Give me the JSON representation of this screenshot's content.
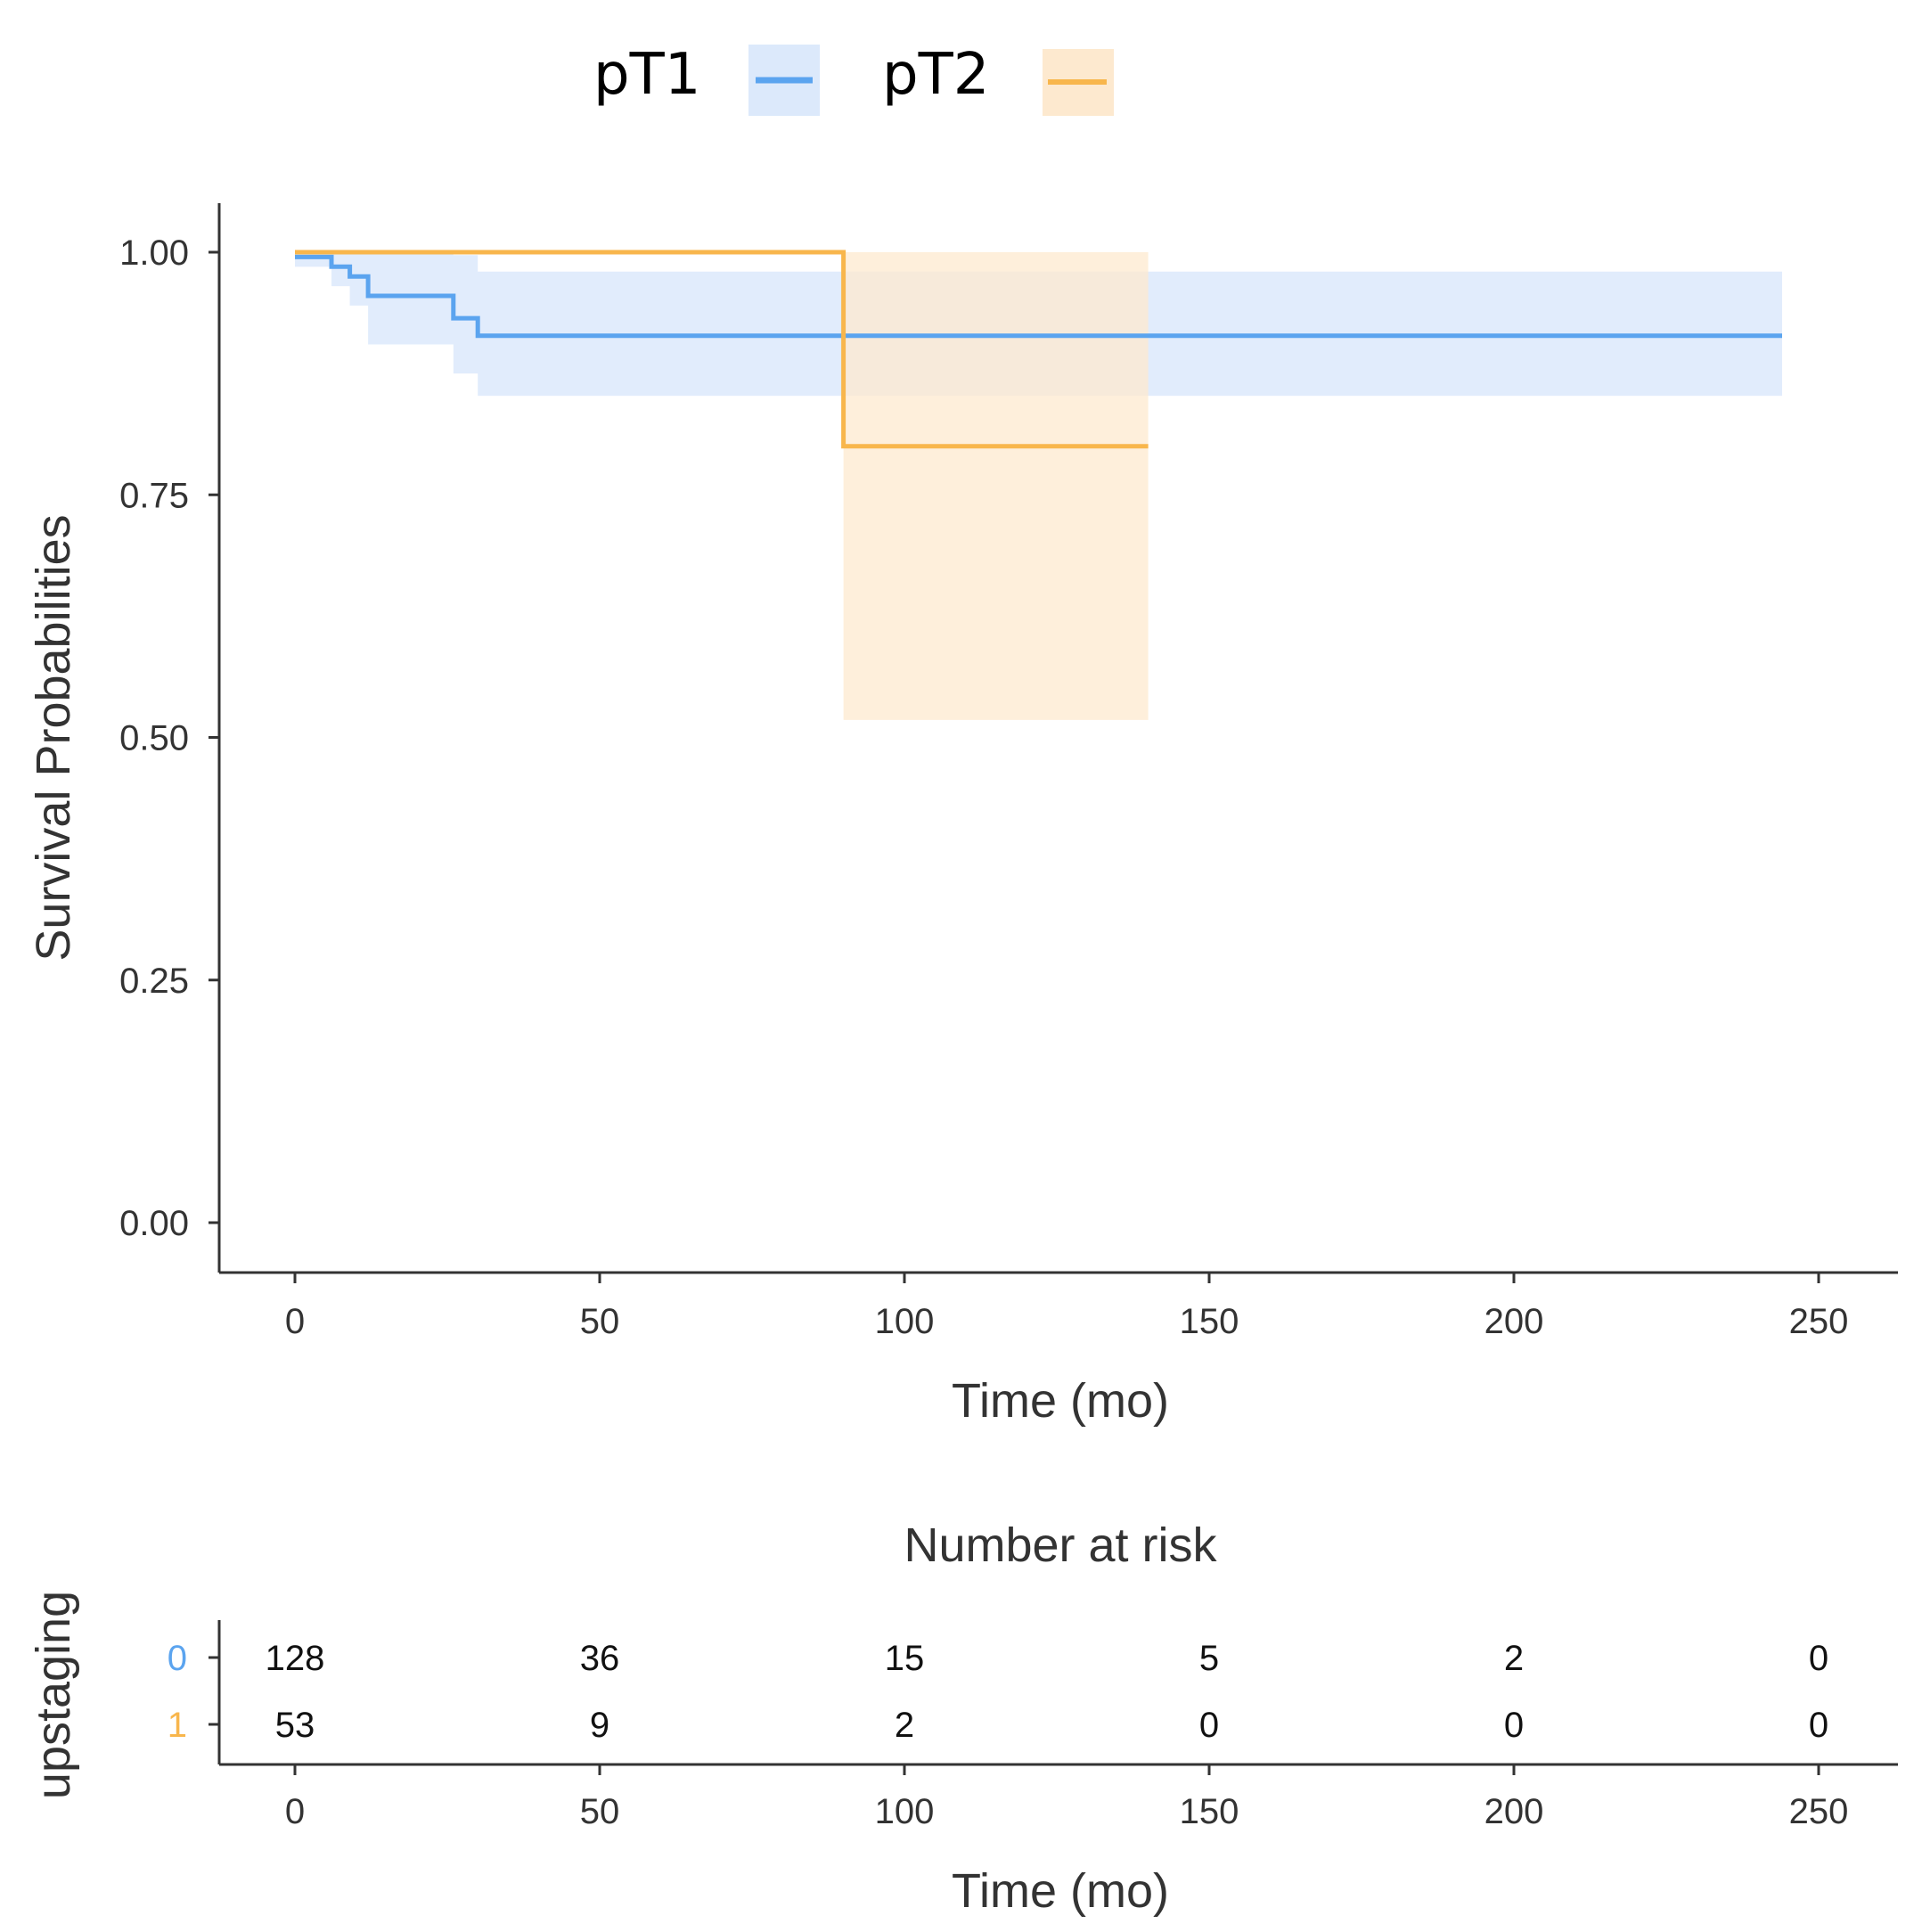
{
  "chart_data": {
    "type": "line",
    "subtype": "kaplan-meier",
    "title": "",
    "xlabel": "Time (mo)",
    "ylabel": "Survival Probabilities",
    "xlim": [
      0,
      250
    ],
    "ylim": [
      0,
      1
    ],
    "x_ticks": [
      "0",
      "50",
      "100",
      "150",
      "200",
      "250"
    ],
    "y_ticks": [
      "0.00",
      "0.25",
      "0.50",
      "0.75",
      "1.00"
    ],
    "legend": [
      {
        "label": "pT1",
        "color": "#5ba4ef"
      },
      {
        "label": "pT2",
        "color": "#f8b64c"
      }
    ],
    "series": [
      {
        "name": "pT1",
        "color": "#5ba4ef",
        "band_color": "#dce9fb",
        "steps": [
          [
            0,
            0.995
          ],
          [
            6,
            0.985
          ],
          [
            9,
            0.975
          ],
          [
            12,
            0.955
          ],
          [
            26,
            0.932
          ],
          [
            30,
            0.914
          ],
          [
            244,
            0.914
          ]
        ],
        "ci_lower": [
          [
            0,
            0.985
          ],
          [
            6,
            0.965
          ],
          [
            9,
            0.945
          ],
          [
            12,
            0.905
          ],
          [
            26,
            0.875
          ],
          [
            30,
            0.852
          ],
          [
            244,
            0.852
          ]
        ],
        "ci_upper": [
          [
            0,
            1.0
          ],
          [
            26,
            0.997
          ],
          [
            30,
            0.98
          ],
          [
            244,
            0.98
          ]
        ]
      },
      {
        "name": "pT2",
        "color": "#f8b64c",
        "band_color": "#fde9cf",
        "steps": [
          [
            0,
            1.0
          ],
          [
            90,
            0.8
          ],
          [
            140,
            0.8
          ]
        ],
        "ci_lower": [
          [
            90,
            0.518
          ],
          [
            140,
            0.518
          ]
        ],
        "ci_upper": [
          [
            90,
            1.0
          ],
          [
            140,
            1.0
          ]
        ]
      }
    ],
    "risk_table": {
      "title": "Number at risk",
      "ylabel": "upstaging",
      "xlabel": "Time (mo)",
      "times": [
        0,
        50,
        100,
        150,
        200,
        250
      ],
      "x_ticks": [
        "0",
        "50",
        "100",
        "150",
        "200",
        "250"
      ],
      "strata": [
        {
          "label": "0",
          "color": "#5ba4ef",
          "values": [
            "128",
            "36",
            "15",
            "5",
            "2",
            "0"
          ]
        },
        {
          "label": "1",
          "color": "#f8b64c",
          "values": [
            "53",
            "9",
            "2",
            "0",
            "0",
            "0"
          ]
        }
      ]
    }
  }
}
